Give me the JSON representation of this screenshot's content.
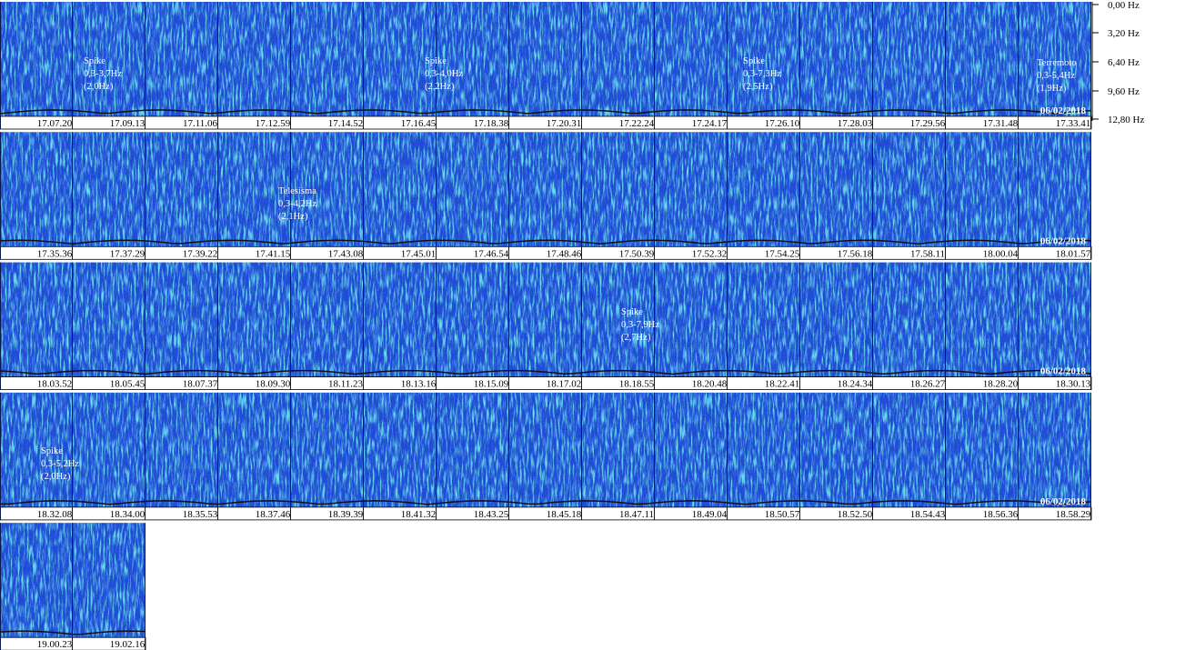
{
  "frequency_axis": [
    "0,00 Hz",
    "3,20 Hz",
    "6,40 Hz",
    "9,60 Hz",
    "12,80 Hz"
  ],
  "rows": [
    {
      "times": [
        "17.07.20",
        "17.09.13",
        "17.11.06",
        "17.12.59",
        "17.14.52",
        "17.16.45",
        "17.18.38",
        "17.20.31",
        "17.22.24",
        "17.24.17",
        "17.26.10",
        "17.28.03",
        "17.29.56",
        "17.31.48",
        "17.33.41"
      ],
      "date": "06/02/2018",
      "annotations": [
        {
          "lines": [
            "Spike",
            "0,3-3,7Hz",
            "(2,0Hz)"
          ]
        },
        {
          "lines": [
            "Spike",
            "0,3-4,0Hz",
            "(2,2Hz)"
          ]
        },
        {
          "lines": [
            "Spike",
            "0,3-7,3Hz",
            "(2,5Hz)"
          ]
        },
        {
          "lines": [
            "Terremoto",
            "0,3-5,4Hz",
            "(1,9Hz)"
          ]
        }
      ]
    },
    {
      "times": [
        "17.35.36",
        "17.37.29",
        "17.39.22",
        "17.41.15",
        "17.43.08",
        "17.45.01",
        "17.46.54",
        "17.48.46",
        "17.50.39",
        "17.52.32",
        "17.54.25",
        "17.56.18",
        "17.58.11",
        "18.00.04",
        "18.01.57"
      ],
      "date": "06/02/2018",
      "annotations": [
        {
          "lines": [
            "Telesisma",
            "0,3-4,2Hz",
            "(2,1Hz)"
          ]
        }
      ]
    },
    {
      "times": [
        "18.03.52",
        "18.05.45",
        "18.07.37",
        "18.09.30",
        "18.11.23",
        "18.13.16",
        "18.15.09",
        "18.17.02",
        "18.18.55",
        "18.20.48",
        "18.22.41",
        "18.24.34",
        "18.26.27",
        "18.28.20",
        "18.30.13"
      ],
      "date": "06/02/2018",
      "annotations": [
        {
          "lines": [
            "Spike",
            "0,3-7,9Hz",
            "(2,7Hz)"
          ]
        }
      ]
    },
    {
      "times": [
        "18.32.08",
        "18.34.00",
        "18.35.53",
        "18.37.46",
        "18.39.39",
        "18.41.32",
        "18.43.25",
        "18.45.18",
        "18.47.11",
        "18.49.04",
        "18.50.57",
        "18.52.50",
        "18.54.43",
        "18.56.36",
        "18.58.29"
      ],
      "date": "06/02/2018",
      "annotations": [
        {
          "lines": [
            "Spike",
            "0,3-5,2Hz",
            "(2,0Hz)"
          ]
        }
      ]
    },
    {
      "times": [
        "19.00.23",
        "19.02.16"
      ]
    }
  ]
}
